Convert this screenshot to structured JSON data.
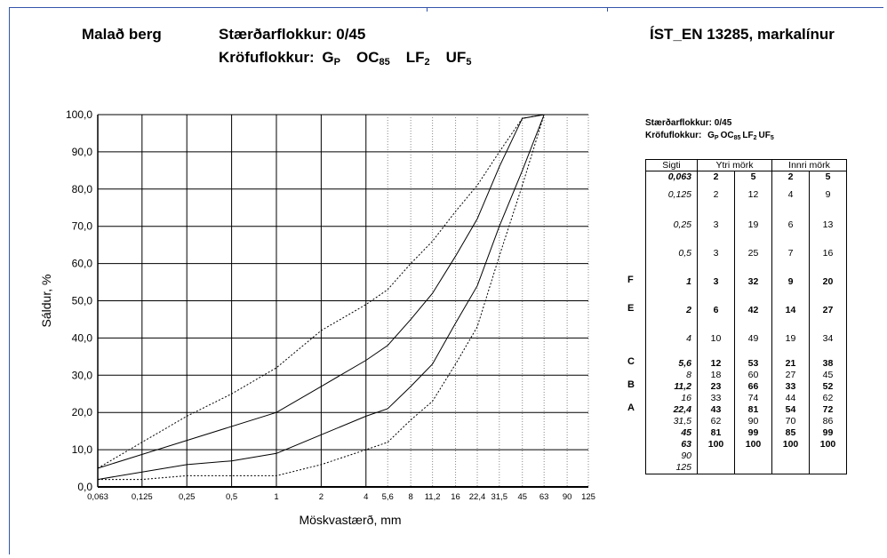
{
  "header": {
    "product": "Malað berg",
    "size_class_label": "Stærðarflokkur: 0/45",
    "req_label": "Kröfuflokkur:",
    "req_items": [
      {
        "base": "G",
        "sub": "P"
      },
      {
        "base": "OC",
        "sub": "85"
      },
      {
        "base": "LF",
        "sub": "2"
      },
      {
        "base": "UF",
        "sub": "5"
      }
    ],
    "standard": "ÍST_EN 13285, markalínur"
  },
  "chart_data": {
    "type": "line",
    "xlabel": "Möskvastærð, mm",
    "ylabel": "Sáldur, %",
    "x_scale": "log",
    "xlim": [
      0.063,
      125
    ],
    "ylim": [
      0,
      100
    ],
    "x_ticks": [
      "0,063",
      "0,125",
      "0,25",
      "0,5",
      "1",
      "2",
      "4",
      "5,6",
      "8",
      "11,2",
      "16",
      "22,4",
      "31,5",
      "45",
      "63",
      "90",
      "125"
    ],
    "x_tick_values": [
      0.063,
      0.125,
      0.25,
      0.5,
      1,
      2,
      4,
      5.6,
      8,
      11.2,
      16,
      22.4,
      31.5,
      45,
      63,
      90,
      125
    ],
    "x_tick_style": [
      "solid",
      "solid",
      "solid",
      "solid",
      "solid",
      "solid",
      "solid",
      "dotted",
      "dotted",
      "dotted",
      "dotted",
      "dotted",
      "dotted",
      "dotted",
      "dotted",
      "dotted",
      "dotted"
    ],
    "y_ticks": [
      "0,0",
      "10,0",
      "20,0",
      "30,0",
      "40,0",
      "50,0",
      "60,0",
      "70,0",
      "80,0",
      "90,0",
      "100,0"
    ],
    "y_tick_values": [
      0,
      10,
      20,
      30,
      40,
      50,
      60,
      70,
      80,
      90,
      100
    ],
    "grid": true,
    "series": [
      {
        "style": "dashed",
        "x": [
          0.063,
          0.125,
          0.25,
          0.5,
          1,
          2,
          4,
          5.6,
          8,
          11.2,
          16,
          22.4,
          31.5,
          45,
          63
        ],
        "values": [
          5,
          12,
          19,
          25,
          32,
          42,
          49,
          53,
          60,
          66,
          74,
          81,
          90,
          99,
          100
        ]
      },
      {
        "style": "solid",
        "x": [
          0.063,
          1,
          2,
          4,
          5.6,
          8,
          11.2,
          16,
          22.4,
          31.5,
          45,
          63
        ],
        "values": [
          5,
          20,
          27,
          34,
          38,
          45,
          52,
          62,
          72,
          86,
          99,
          100
        ]
      },
      {
        "style": "solid",
        "x": [
          0.063,
          0.125,
          0.25,
          0.5,
          1,
          2,
          4,
          5.6,
          8,
          11.2,
          16,
          22.4,
          31.5,
          45,
          63
        ],
        "values": [
          2,
          4,
          6,
          7,
          9,
          14,
          19,
          21,
          27,
          33,
          44,
          54,
          70,
          85,
          100
        ]
      },
      {
        "style": "dashed",
        "x": [
          0.063,
          0.125,
          0.25,
          0.5,
          1,
          2,
          4,
          5.6,
          8,
          11.2,
          16,
          22.4,
          31.5,
          45,
          63
        ],
        "values": [
          2,
          2,
          3,
          3,
          3,
          6,
          10,
          12,
          18,
          23,
          33,
          43,
          62,
          81,
          100
        ]
      }
    ]
  },
  "table": {
    "title_line1": "Stærðarflokkur: 0/45",
    "title_label": "Kröfuflokkur:",
    "title_items": [
      {
        "base": "G",
        "sub": "P"
      },
      {
        "base": "OC",
        "sub": "85"
      },
      {
        "base": "LF",
        "sub": "2"
      },
      {
        "base": "UF",
        "sub": "5"
      }
    ],
    "col_sigti": "Sigti",
    "col_ytri": "Ytri mörk",
    "col_innri": "Innri mörk",
    "rows": [
      {
        "sigti": "0,063",
        "y1": "2",
        "y2": "5",
        "i1": "2",
        "i2": "5",
        "bold": true,
        "label": "",
        "height": 20
      },
      {
        "sigti": "0,125",
        "y1": "2",
        "y2": "12",
        "i1": "4",
        "i2": "9",
        "bold": false,
        "label": "",
        "height": 34
      },
      {
        "sigti": "0,25",
        "y1": "3",
        "y2": "19",
        "i1": "6",
        "i2": "13",
        "bold": false,
        "label": "",
        "height": 32
      },
      {
        "sigti": "0,5",
        "y1": "3",
        "y2": "25",
        "i1": "7",
        "i2": "16",
        "bold": false,
        "label": "",
        "height": 32
      },
      {
        "sigti": "1",
        "y1": "3",
        "y2": "32",
        "i1": "9",
        "i2": "20",
        "bold": true,
        "label": "F",
        "height": 32
      },
      {
        "sigti": "2",
        "y1": "6",
        "y2": "42",
        "i1": "14",
        "i2": "27",
        "bold": true,
        "label": "E",
        "height": 32
      },
      {
        "sigti": "4",
        "y1": "10",
        "y2": "49",
        "i1": "19",
        "i2": "34",
        "bold": false,
        "label": "",
        "height": 28
      },
      {
        "sigti": "5,6",
        "y1": "12",
        "y2": "53",
        "i1": "21",
        "i2": "38",
        "bold": true,
        "label": "C",
        "height": 13
      },
      {
        "sigti": "8",
        "y1": "18",
        "y2": "60",
        "i1": "27",
        "i2": "45",
        "bold": false,
        "label": "",
        "height": 13
      },
      {
        "sigti": "11,2",
        "y1": "23",
        "y2": "66",
        "i1": "33",
        "i2": "52",
        "bold": true,
        "label": "B",
        "height": 13
      },
      {
        "sigti": "16",
        "y1": "33",
        "y2": "74",
        "i1": "44",
        "i2": "62",
        "bold": false,
        "label": "",
        "height": 13
      },
      {
        "sigti": "22,4",
        "y1": "43",
        "y2": "81",
        "i1": "54",
        "i2": "72",
        "bold": true,
        "label": "A",
        "height": 13
      },
      {
        "sigti": "31,5",
        "y1": "62",
        "y2": "90",
        "i1": "70",
        "i2": "86",
        "bold": false,
        "label": "",
        "height": 13
      },
      {
        "sigti": "45",
        "y1": "81",
        "y2": "99",
        "i1": "85",
        "i2": "99",
        "bold": true,
        "label": "",
        "height": 13
      },
      {
        "sigti": "63",
        "y1": "100",
        "y2": "100",
        "i1": "100",
        "i2": "100",
        "bold": true,
        "label": "",
        "height": 13
      },
      {
        "sigti": "90",
        "y1": "",
        "y2": "",
        "i1": "",
        "i2": "",
        "bold": false,
        "label": "",
        "height": 13
      },
      {
        "sigti": "125",
        "y1": "",
        "y2": "",
        "i1": "",
        "i2": "",
        "bold": false,
        "label": "",
        "height": 13
      }
    ]
  }
}
